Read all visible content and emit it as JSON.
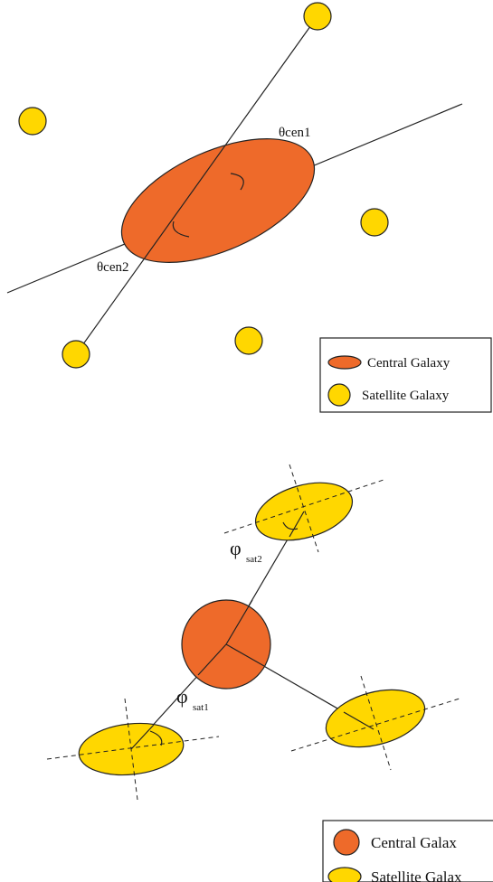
{
  "panel_top": {
    "labels": {
      "theta_cen1": "θcen1",
      "theta_cen2": "θcen2"
    },
    "legend": {
      "central": "Central Galaxy",
      "satellite": "Satellite Galaxy"
    }
  },
  "panel_bottom": {
    "labels": {
      "phi_symbol_1": "φ",
      "phi_sub_1": "sat1",
      "phi_symbol_2": "φ",
      "phi_sub_2": "sat2"
    },
    "legend": {
      "central": "Central Galax",
      "satellite": "Satellite Galax"
    }
  },
  "colors": {
    "central_fill": "#EE6A2A",
    "satellite_fill": "#FFD700",
    "outline": "#222222"
  }
}
